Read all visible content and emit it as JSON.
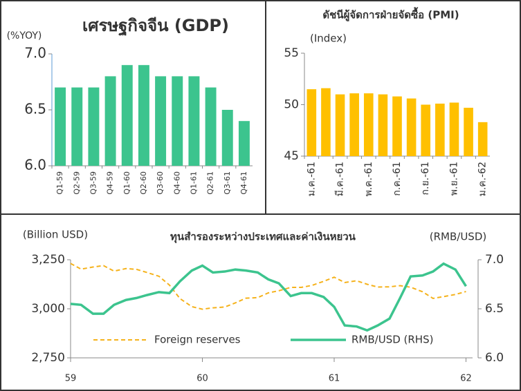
{
  "chart_data": [
    {
      "type": "bar",
      "title": "เศรษฐกิจจีน (GDP)",
      "y_label": "(%YOY)",
      "categories": [
        "Q1-59",
        "Q2-59",
        "Q3-59",
        "Q4-59",
        "Q1-60",
        "Q2-60",
        "Q3-60",
        "Q4-60",
        "Q1-61",
        "Q2-61",
        "Q3-61",
        "Q4-61"
      ],
      "values": [
        6.7,
        6.7,
        6.7,
        6.8,
        6.9,
        6.9,
        6.8,
        6.8,
        6.8,
        6.7,
        6.5,
        6.4
      ],
      "color": "#3cc48e",
      "ylim": [
        6.0,
        7.0
      ],
      "yticks": [
        {
          "value": 6.0,
          "label": "6.0"
        },
        6.5,
        {
          "value": 7.0,
          "label": "7.0"
        }
      ]
    },
    {
      "type": "bar",
      "title": "ดัชนีผู้จัดการฝ่ายจัดซื้อ (PMI)",
      "y_label": "(Index)",
      "categories": [
        "ม.ค.-61",
        null,
        "มี.ค.-61",
        null,
        "พ.ค.-61",
        null,
        "ก.ค.-61",
        null,
        "ก.ย.-61",
        null,
        "พ.ย.-61",
        null,
        "ม.ค.-62"
      ],
      "values": [
        51.5,
        51.6,
        51.0,
        51.1,
        51.1,
        51.0,
        50.8,
        50.6,
        50.0,
        50.1,
        50.2,
        49.7,
        48.3
      ],
      "color": "#ffc000",
      "ylim": [
        45,
        55
      ],
      "yticks": [
        45,
        50,
        55
      ]
    },
    {
      "type": "line",
      "title": "ทุนสำรองระหว่างประเทศและค่าเงินหยวน",
      "y_label": "(Billion USD)",
      "y2_label": "(RMB/USD)",
      "x": [
        59,
        59.08,
        59.17,
        59.25,
        59.33,
        59.42,
        59.5,
        59.58,
        59.67,
        59.75,
        59.83,
        59.92,
        60,
        60.08,
        60.17,
        60.25,
        60.33,
        60.42,
        60.5,
        60.58,
        60.67,
        60.75,
        60.83,
        60.92,
        61,
        61.08,
        61.17,
        61.25,
        61.33,
        61.42,
        61.5,
        61.58,
        61.67,
        61.75,
        61.83,
        61.92,
        62
      ],
      "series": [
        {
          "name": "Foreign reserves",
          "color": "#f5b21b",
          "line_style": "dashed",
          "values": [
            3231,
            3202,
            3213,
            3220,
            3192,
            3205,
            3201,
            3185,
            3166,
            3121,
            3052,
            3011,
            2998,
            3005,
            3009,
            3030,
            3054,
            3057,
            3081,
            3092,
            3109,
            3109,
            3119,
            3140,
            3161,
            3134,
            3143,
            3125,
            3111,
            3112,
            3118,
            3110,
            3087,
            3053,
            3062,
            3073,
            3088
          ]
        },
        {
          "name": "RMB/USD (RHS)",
          "color": "#3cc48e",
          "line_style": "solid",
          "axis": "y2",
          "values": [
            6.55,
            6.54,
            6.45,
            6.45,
            6.54,
            6.59,
            6.61,
            6.64,
            6.67,
            6.66,
            6.78,
            6.89,
            6.94,
            6.87,
            6.88,
            6.9,
            6.89,
            6.87,
            6.8,
            6.76,
            6.63,
            6.66,
            6.66,
            6.62,
            6.52,
            6.33,
            6.32,
            6.28,
            6.33,
            6.4,
            6.61,
            6.83,
            6.84,
            6.88,
            6.96,
            6.9,
            6.73
          ]
        }
      ],
      "xlim": [
        59,
        62.05
      ],
      "xticks": [
        59,
        60,
        61,
        62
      ],
      "ylim": [
        2750,
        3250
      ],
      "yticks": [
        {
          "value": 2750,
          "label": "2,750"
        },
        {
          "value": 3000,
          "label": "3,000"
        },
        {
          "value": 3250,
          "label": "3,250"
        }
      ],
      "y2lim": [
        6.0,
        7.0
      ],
      "y2ticks": [
        {
          "value": 6.0,
          "label": "6.0"
        },
        6.5,
        {
          "value": 7.0,
          "label": "7.0"
        }
      ],
      "legend": "bottom"
    }
  ]
}
